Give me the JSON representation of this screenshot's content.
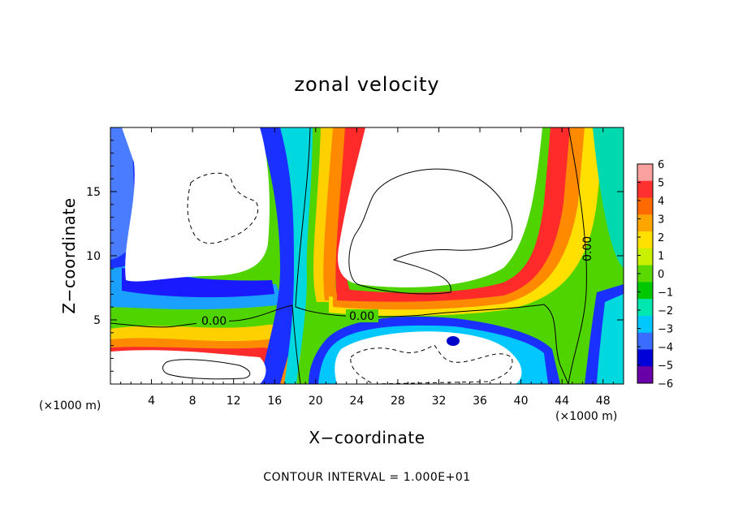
{
  "chart_data": {
    "type": "heatmap",
    "title": "zonal velocity",
    "xlabel": "X−coordinate",
    "ylabel": "Z−coordinate",
    "x_unit": "(×1000 m)",
    "x_unit_right": "(×1000 m)",
    "xlim": [
      0,
      50
    ],
    "ylim": [
      0,
      20
    ],
    "xticks": [
      "4",
      "8",
      "12",
      "16",
      "20",
      "24",
      "28",
      "32",
      "36",
      "40",
      "44",
      "48"
    ],
    "yticks": [
      "5",
      "10",
      "15"
    ],
    "colorbar": {
      "range": [
        -6,
        6
      ],
      "labels": [
        "6",
        "5",
        "4",
        "3",
        "2",
        "1",
        "0",
        "−1",
        "−2",
        "−3",
        "−4",
        "−5",
        "−6"
      ],
      "colors": [
        "#fca0a0",
        "#ff3030",
        "#ff6a00",
        "#ffa500",
        "#ffe000",
        "#c8f000",
        "#5ad800",
        "#00c800",
        "#00e8b0",
        "#00c8ff",
        "#3a6cff",
        "#0000d8",
        "#6a00a8"
      ]
    },
    "contour_labels": [
      "0.00",
      "0.00",
      "0.00"
    ],
    "footer": "CONTOUR INTERVAL = 1.000E+01"
  }
}
